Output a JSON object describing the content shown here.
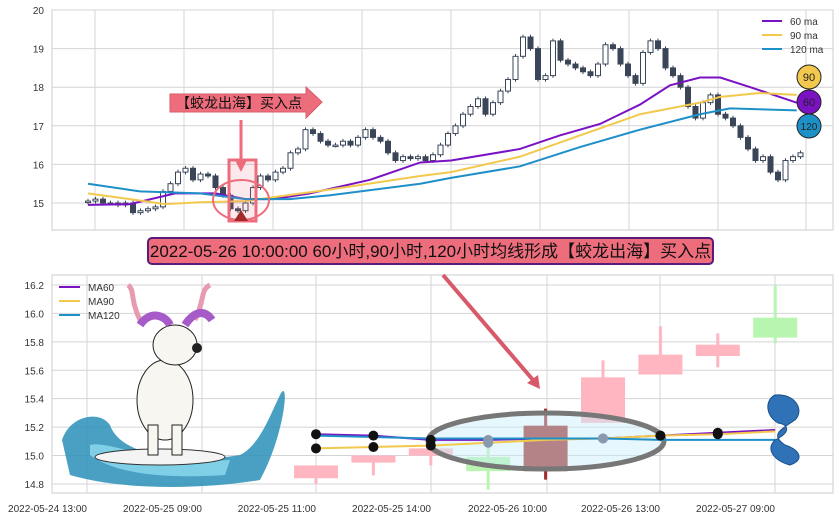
{
  "banner_text": "2022-05-26 10:00:00 60小时,90小时,120小时均线形成【蛟龙出海】买入点",
  "signal_label": "【蛟龙出海】买入点",
  "colors": {
    "ma60": "#7a12c4",
    "ma90": "#f2c94c",
    "ma120": "#1e90c8",
    "candle": "#3a4658",
    "up_light": "#ffb6c1",
    "down_light": "#b8f5b0",
    "signal": "#a32a2a",
    "annotation": "#ee6d7c"
  },
  "chart_data": [
    {
      "type": "candlestick",
      "title": "",
      "ylim": [
        14.3,
        20.0
      ],
      "yticks": [
        "15",
        "16",
        "17",
        "18",
        "19",
        "20"
      ],
      "grid": true,
      "legend": {
        "position": "top-right",
        "entries": [
          "60 ma",
          "90 ma",
          "120 ma"
        ]
      },
      "close": [
        15.05,
        15.1,
        15.0,
        15.0,
        14.95,
        15.0,
        14.75,
        14.8,
        14.85,
        14.9,
        15.3,
        15.5,
        15.8,
        15.9,
        15.6,
        15.75,
        15.7,
        15.4,
        15.2,
        14.85,
        14.8,
        15.0,
        15.4,
        15.7,
        15.6,
        15.8,
        15.9,
        16.3,
        16.4,
        16.9,
        16.8,
        16.6,
        16.5,
        16.5,
        16.6,
        16.5,
        16.7,
        16.9,
        16.7,
        16.6,
        16.3,
        16.1,
        16.2,
        16.15,
        16.2,
        16.1,
        16.25,
        16.5,
        16.8,
        17.0,
        17.3,
        17.5,
        17.7,
        17.3,
        17.6,
        17.9,
        18.2,
        18.8,
        19.3,
        19.0,
        18.2,
        18.3,
        19.2,
        18.7,
        18.6,
        18.5,
        18.4,
        18.3,
        18.6,
        19.1,
        19.0,
        18.6,
        18.3,
        18.1,
        18.9,
        19.2,
        19.0,
        18.5,
        18.3,
        18.0,
        17.5,
        17.2,
        17.6,
        17.8,
        17.3,
        17.2,
        17.0,
        16.7,
        16.4,
        16.1,
        16.2,
        15.8,
        15.6,
        16.1,
        16.2,
        16.3
      ],
      "series": [
        {
          "name": "60 ma",
          "points": [
            [
              0,
              14.95
            ],
            [
              5.6,
              14.97
            ],
            [
              11.6,
              15.25
            ],
            [
              17,
              15.25
            ],
            [
              21,
              15.1
            ],
            [
              24.7,
              15.1
            ],
            [
              29.6,
              15.25
            ],
            [
              37.6,
              15.6
            ],
            [
              44.3,
              16.05
            ],
            [
              48.4,
              16.1
            ],
            [
              57.6,
              16.4
            ],
            [
              62.9,
              16.75
            ],
            [
              68.3,
              17.05
            ],
            [
              73.6,
              17.55
            ],
            [
              77.6,
              18.05
            ],
            [
              81.6,
              18.25
            ],
            [
              84.3,
              18.25
            ],
            [
              88.3,
              18.0
            ],
            [
              94.5,
              17.6
            ]
          ]
        },
        {
          "name": "90 ma",
          "points": [
            [
              0,
              15.25
            ],
            [
              5.6,
              15.1
            ],
            [
              10.3,
              14.97
            ],
            [
              14.9,
              15.02
            ],
            [
              21,
              15.05
            ],
            [
              24.7,
              15.15
            ],
            [
              32.3,
              15.35
            ],
            [
              44.3,
              15.7
            ],
            [
              48.4,
              15.8
            ],
            [
              57.6,
              16.2
            ],
            [
              65.6,
              16.75
            ],
            [
              73.6,
              17.3
            ],
            [
              81.6,
              17.6
            ],
            [
              84.3,
              17.75
            ],
            [
              89.6,
              17.85
            ],
            [
              94.5,
              17.8
            ]
          ]
        },
        {
          "name": "120 ma",
          "points": [
            [
              0,
              15.5
            ],
            [
              6.9,
              15.3
            ],
            [
              14.9,
              15.25
            ],
            [
              21,
              15.1
            ],
            [
              26.9,
              15.1
            ],
            [
              32.3,
              15.2
            ],
            [
              44.3,
              15.5
            ],
            [
              48.4,
              15.65
            ],
            [
              57.6,
              15.95
            ],
            [
              65.6,
              16.45
            ],
            [
              73.6,
              16.9
            ],
            [
              81.6,
              17.3
            ],
            [
              85.6,
              17.45
            ],
            [
              94.5,
              17.4
            ]
          ]
        }
      ],
      "badges": [
        "90",
        "60",
        "120"
      ]
    },
    {
      "type": "candlestick",
      "title": "",
      "ylim": [
        14.7,
        16.25
      ],
      "yticks": [
        "14.8",
        "15.0",
        "15.2",
        "15.4",
        "15.6",
        "15.8",
        "16.0",
        "16.2"
      ],
      "xticks": [
        "2022-05-24 13:00",
        "2022-05-25 09:00",
        "2022-05-25 11:00",
        "2022-05-25 14:00",
        "2022-05-26 10:00",
        "2022-05-26 13:00",
        "2022-05-27 09:00"
      ],
      "grid": true,
      "legend": {
        "position": "top-left",
        "entries": [
          "MA60",
          "MA90",
          "MA120"
        ]
      },
      "candles": [
        {
          "o": 14.84,
          "h": 14.93,
          "l": 14.8,
          "c": 14.93,
          "color": "up_light"
        },
        {
          "o": 14.95,
          "h": 15.0,
          "l": 14.86,
          "c": 15.0,
          "color": "up_light"
        },
        {
          "o": 15.0,
          "h": 15.05,
          "l": 14.93,
          "c": 15.05,
          "color": "up_light"
        },
        {
          "o": 14.99,
          "h": 15.11,
          "l": 14.76,
          "c": 14.89,
          "color": "down_light"
        },
        {
          "o": 14.89,
          "h": 15.33,
          "l": 14.83,
          "c": 15.21,
          "color": "signal"
        },
        {
          "o": 15.23,
          "h": 15.67,
          "l": 15.23,
          "c": 15.55,
          "color": "up_light"
        },
        {
          "o": 15.57,
          "h": 15.91,
          "l": 15.57,
          "c": 15.71,
          "color": "up_light"
        },
        {
          "o": 15.7,
          "h": 15.86,
          "l": 15.62,
          "c": 15.78,
          "color": "up_light"
        },
        {
          "o": 15.97,
          "h": 16.2,
          "l": 15.79,
          "c": 15.83,
          "color": "down_light"
        }
      ],
      "series": [
        {
          "name": "MA60",
          "values": [
            15.15,
            15.14,
            15.11,
            15.11,
            15.12,
            15.12,
            15.14,
            15.16,
            15.18
          ]
        },
        {
          "name": "MA90",
          "values": [
            15.05,
            15.06,
            15.07,
            15.09,
            15.11,
            15.12,
            15.14,
            15.15,
            15.17
          ]
        },
        {
          "name": "MA120",
          "values": [
            15.14,
            15.13,
            15.12,
            15.12,
            15.12,
            15.12,
            15.11,
            15.11,
            15.11
          ]
        }
      ]
    }
  ]
}
